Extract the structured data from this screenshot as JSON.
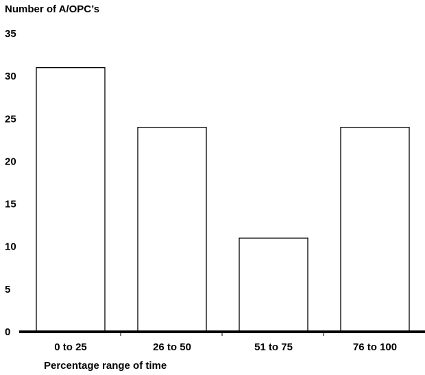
{
  "chart_data": {
    "type": "bar",
    "title": "",
    "ylabel": "Number of A/OPC’s",
    "xlabel": "Percentage range of time",
    "categories": [
      "0 to 25",
      "26 to 50",
      "51 to 75",
      "76 to 100"
    ],
    "values": [
      31,
      24,
      11,
      24
    ],
    "ylim": [
      0,
      35
    ],
    "yticks": [
      0,
      5,
      10,
      15,
      20,
      25,
      30,
      35
    ],
    "grid": false,
    "legend": "none",
    "bar_fill": "#ffffff",
    "bar_stroke": "#000000",
    "axis_color": "#000000"
  }
}
